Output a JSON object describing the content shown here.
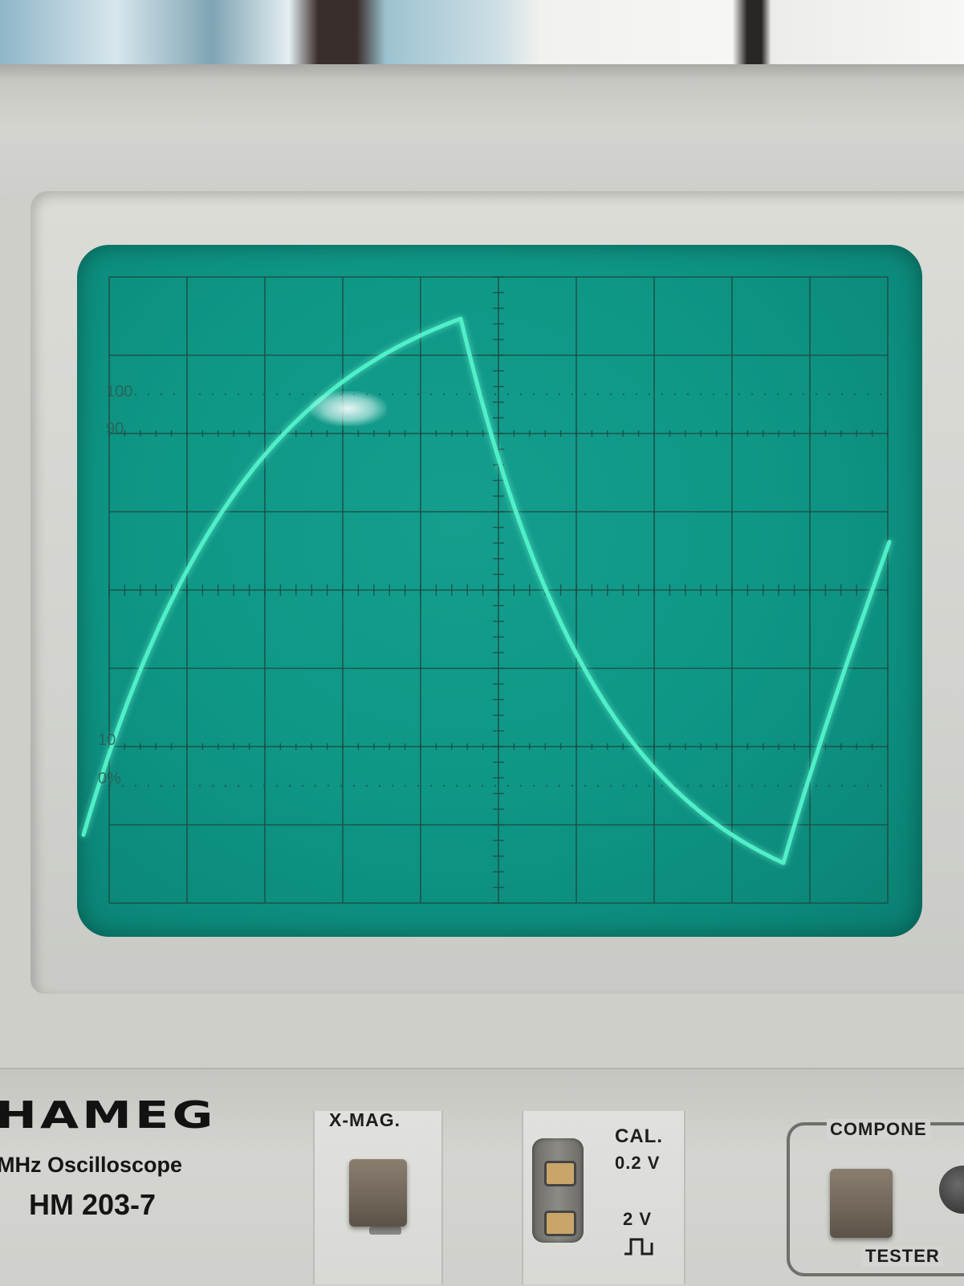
{
  "graticule": {
    "label_100": "100",
    "label_90": "90",
    "label_10": "10",
    "label_0": "0%"
  },
  "trace": {
    "color": "#4ff0c8",
    "description_shape": "rc-charge-discharge"
  },
  "screen": {
    "phosphor_color": "#0f9786",
    "grid_color": "#1d4a43"
  },
  "panel": {
    "brand": "HAMEG",
    "model_subtitle": "MHz Oscilloscope",
    "model_number": "HM 203-7",
    "xmag_label": "X-MAG.",
    "cal_label": "CAL.",
    "cal_value_1": "0.2 V",
    "cal_value_2": "2 V",
    "component_label": "COMPONE",
    "tester_label": "TESTER"
  }
}
